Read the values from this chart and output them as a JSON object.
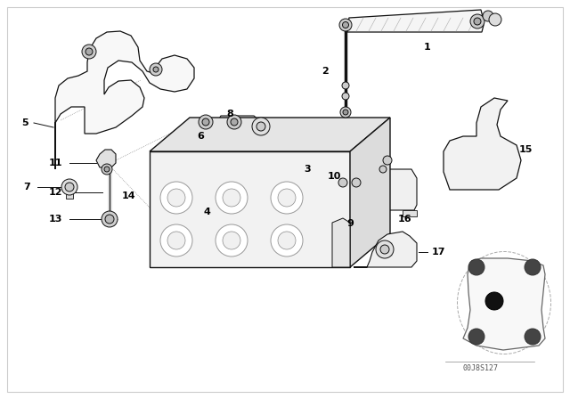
{
  "bg_color": "#ffffff",
  "line_color": "#111111",
  "label_color": "#000000",
  "diagram_id": "00J8S127",
  "figsize": [
    6.4,
    4.48
  ],
  "dpi": 100
}
